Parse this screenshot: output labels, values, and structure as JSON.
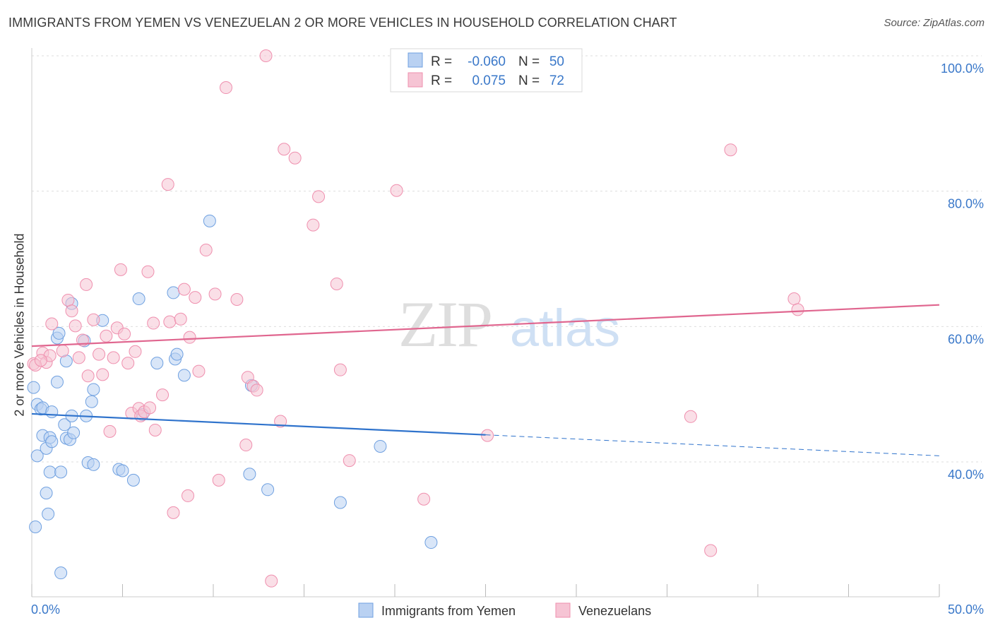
{
  "title": "IMMIGRANTS FROM YEMEN VS VENEZUELAN 2 OR MORE VEHICLES IN HOUSEHOLD CORRELATION CHART",
  "source": "Source: ZipAtlas.com",
  "watermark": {
    "zip": "ZIP",
    "atlas": "atlas"
  },
  "legend_box": {
    "rows": [
      {
        "r_label": "R =",
        "r_value": "-0.060",
        "n_label": "N =",
        "n_value": "50",
        "color": "#6fa0e0"
      },
      {
        "r_label": "R =",
        "r_value": "0.075",
        "n_label": "N =",
        "n_value": "72",
        "color": "#ef8fae"
      }
    ]
  },
  "chart_data": {
    "type": "scatter",
    "ylabel": "2 or more Vehicles in Household",
    "xlim": [
      0,
      50
    ],
    "ylim": [
      22,
      102
    ],
    "x_tick_labels": [
      "0.0%",
      "50.0%"
    ],
    "y_ticks": [
      40,
      60,
      80,
      100
    ],
    "y_tick_labels": [
      "40.0%",
      "60.0%",
      "80.0%",
      "100.0%"
    ],
    "grid": true,
    "series": [
      {
        "name": "Immigrants from Yemen",
        "color": "#6fa0e0",
        "fill": "#b9d1f2",
        "trend": {
          "x": [
            0,
            25
          ],
          "y": [
            47.1,
            44.0
          ],
          "dashed_to": [
            50,
            40.9
          ]
        },
        "points": [
          [
            0.1,
            51.0
          ],
          [
            0.3,
            48.5
          ],
          [
            0.5,
            47.8
          ],
          [
            0.6,
            48.0
          ],
          [
            0.3,
            40.9
          ],
          [
            0.6,
            43.9
          ],
          [
            0.8,
            42.0
          ],
          [
            1.0,
            43.6
          ],
          [
            1.0,
            38.5
          ],
          [
            1.1,
            43.0
          ],
          [
            0.8,
            35.4
          ],
          [
            0.9,
            32.3
          ],
          [
            0.2,
            30.4
          ],
          [
            1.1,
            47.4
          ],
          [
            1.4,
            51.8
          ],
          [
            1.4,
            58.3
          ],
          [
            1.5,
            59.0
          ],
          [
            1.6,
            38.5
          ],
          [
            1.8,
            45.5
          ],
          [
            1.9,
            43.5
          ],
          [
            1.9,
            54.9
          ],
          [
            2.1,
            43.3
          ],
          [
            2.2,
            46.8
          ],
          [
            2.3,
            44.3
          ],
          [
            2.2,
            63.4
          ],
          [
            2.9,
            57.9
          ],
          [
            3.0,
            46.8
          ],
          [
            3.1,
            39.9
          ],
          [
            3.3,
            48.9
          ],
          [
            3.4,
            50.7
          ],
          [
            3.4,
            39.6
          ],
          [
            3.9,
            60.9
          ],
          [
            4.8,
            38.9
          ],
          [
            5.0,
            38.7
          ],
          [
            5.6,
            37.3
          ],
          [
            5.9,
            64.1
          ],
          [
            6.1,
            47.0
          ],
          [
            6.9,
            54.6
          ],
          [
            7.8,
            65.0
          ],
          [
            7.9,
            55.2
          ],
          [
            8.0,
            55.9
          ],
          [
            8.4,
            52.8
          ],
          [
            9.8,
            75.6
          ],
          [
            12.1,
            51.3
          ],
          [
            12.0,
            38.2
          ],
          [
            13.0,
            35.9
          ],
          [
            17.0,
            34.0
          ],
          [
            19.2,
            42.3
          ],
          [
            22.0,
            28.1
          ],
          [
            1.6,
            23.6
          ]
        ]
      },
      {
        "name": "Venezuelans",
        "color": "#ef8fae",
        "fill": "#f6c4d4",
        "trend": {
          "x": [
            0,
            50
          ],
          "y": [
            57.1,
            63.2
          ]
        },
        "points": [
          [
            0.1,
            54.5
          ],
          [
            0.6,
            56.1
          ],
          [
            0.8,
            54.7
          ],
          [
            1.0,
            55.7
          ],
          [
            1.1,
            60.4
          ],
          [
            1.7,
            56.4
          ],
          [
            2.0,
            63.9
          ],
          [
            2.2,
            62.3
          ],
          [
            2.4,
            60.1
          ],
          [
            2.6,
            55.4
          ],
          [
            2.8,
            58.0
          ],
          [
            3.0,
            66.2
          ],
          [
            3.1,
            52.7
          ],
          [
            3.4,
            61.0
          ],
          [
            3.7,
            55.9
          ],
          [
            3.9,
            52.9
          ],
          [
            4.1,
            58.6
          ],
          [
            4.3,
            44.5
          ],
          [
            4.5,
            55.4
          ],
          [
            4.7,
            59.8
          ],
          [
            4.9,
            68.4
          ],
          [
            5.1,
            58.9
          ],
          [
            5.3,
            54.6
          ],
          [
            5.5,
            47.2
          ],
          [
            5.7,
            56.3
          ],
          [
            5.9,
            47.9
          ],
          [
            6.0,
            46.8
          ],
          [
            6.2,
            47.4
          ],
          [
            6.4,
            68.1
          ],
          [
            6.5,
            48.0
          ],
          [
            6.7,
            60.5
          ],
          [
            6.8,
            44.7
          ],
          [
            7.2,
            49.9
          ],
          [
            7.5,
            81.0
          ],
          [
            7.6,
            60.7
          ],
          [
            7.8,
            32.5
          ],
          [
            8.2,
            61.1
          ],
          [
            8.4,
            65.5
          ],
          [
            8.6,
            35.0
          ],
          [
            8.7,
            58.4
          ],
          [
            9.0,
            64.3
          ],
          [
            9.2,
            53.4
          ],
          [
            9.6,
            71.3
          ],
          [
            10.1,
            64.8
          ],
          [
            10.3,
            37.3
          ],
          [
            10.7,
            95.3
          ],
          [
            11.3,
            64.0
          ],
          [
            11.8,
            42.5
          ],
          [
            11.9,
            52.5
          ],
          [
            12.2,
            51.2
          ],
          [
            12.4,
            50.6
          ],
          [
            12.9,
            100.0
          ],
          [
            13.2,
            22.4
          ],
          [
            13.7,
            46.0
          ],
          [
            13.9,
            86.2
          ],
          [
            14.5,
            84.9
          ],
          [
            15.5,
            75.0
          ],
          [
            15.8,
            79.2
          ],
          [
            16.8,
            66.3
          ],
          [
            17.0,
            53.6
          ],
          [
            17.5,
            40.2
          ],
          [
            20.1,
            80.1
          ],
          [
            21.6,
            34.5
          ],
          [
            21.9,
            100.0
          ],
          [
            25.1,
            43.9
          ],
          [
            36.3,
            46.7
          ],
          [
            37.4,
            26.9
          ],
          [
            38.5,
            86.1
          ],
          [
            42.0,
            64.1
          ],
          [
            42.2,
            62.5
          ],
          [
            0.2,
            54.3
          ],
          [
            0.5,
            55.0
          ]
        ]
      }
    ]
  },
  "bottom_legend": [
    {
      "label": "Immigrants from Yemen",
      "color": "#6fa0e0",
      "fill": "#b9d1f2"
    },
    {
      "label": "Venezuelans",
      "color": "#ef8fae",
      "fill": "#f6c4d4"
    }
  ]
}
